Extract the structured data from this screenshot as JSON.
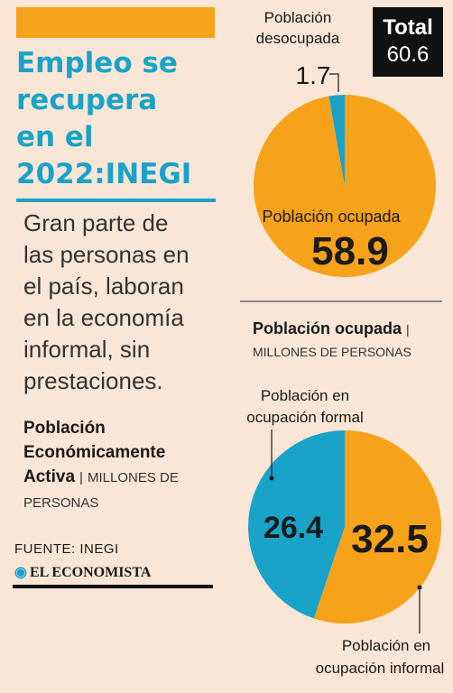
{
  "headline": {
    "title_lines": [
      "Empleo se",
      "recupera",
      "en el",
      "2022:INEGI"
    ],
    "subtitle_lines": [
      "Gran parte de",
      "las personas en",
      "el país, laboran",
      "en la economía",
      "informal, sin",
      "prestaciones."
    ]
  },
  "pea_caption": {
    "bold_lines": [
      "Población",
      "Económicamente",
      "Activa"
    ],
    "separator": "|",
    "unit_lines": [
      "MILLONES DE",
      "PERSONAS"
    ]
  },
  "source": "FUENTE: INEGI",
  "brand": "EL ECONOMISTA",
  "total": {
    "label": "Total",
    "value": "60.6"
  },
  "section2": {
    "title": "Población ocupada",
    "separator": "|",
    "unit": "MILLONES DE PERSONAS"
  },
  "chart_data": [
    {
      "type": "pie",
      "title": "Población Económicamente Activa",
      "unit": "MILLONES DE PERSONAS",
      "total": 60.6,
      "slices": [
        {
          "label": "Población desocupada",
          "label_lines": [
            "Población",
            "desocupada"
          ],
          "value": 1.7,
          "value_text": "1.7",
          "color": "#1aa3c9"
        },
        {
          "label": "Población ocupada",
          "label_lines": [
            "Población ocupada"
          ],
          "value": 58.9,
          "value_text": "58.9",
          "color": "#f7a21b"
        }
      ]
    },
    {
      "type": "pie",
      "title": "Población ocupada",
      "unit": "MILLONES DE PERSONAS",
      "slices": [
        {
          "label": "Población en ocupación formal",
          "label_lines": [
            "Población en",
            "ocupación formal"
          ],
          "value": 26.4,
          "value_text": "26.4",
          "color": "#1aa3c9"
        },
        {
          "label": "Población en ocupación informal",
          "label_lines": [
            "Población en",
            "ocupación informal"
          ],
          "value": 32.5,
          "value_text": "32.5",
          "color": "#f7a21b"
        }
      ]
    }
  ],
  "colors": {
    "accent_blue": "#1aa3c9",
    "accent_orange": "#f7a21b",
    "background": "#f9e6d6"
  }
}
